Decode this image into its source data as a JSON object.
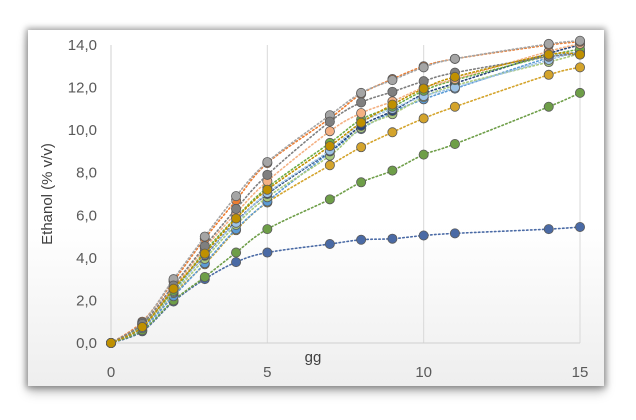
{
  "chart_data": {
    "type": "scatter",
    "xlabel": "gg",
    "ylabel": "Ethanol (% v/v)",
    "xlim": [
      0,
      15
    ],
    "ylim": [
      0,
      14
    ],
    "x_ticks": [
      0,
      5,
      10,
      15
    ],
    "x_tick_labels": [
      "0",
      "5",
      "10",
      "15"
    ],
    "y_ticks": [
      0,
      2,
      4,
      6,
      8,
      10,
      12,
      14
    ],
    "y_tick_labels": [
      "0,0",
      "2,0",
      "4,0",
      "6,0",
      "8,0",
      "10,0",
      "12,0",
      "14,0"
    ],
    "grid": "vertical",
    "line_style": "dotted",
    "x": [
      0,
      1,
      2,
      3,
      4,
      5,
      7,
      8,
      9,
      10,
      11,
      14,
      15
    ],
    "series": [
      {
        "color": "#4a6aa5",
        "values": [
          0.0,
          0.55,
          1.95,
          3.0,
          3.8,
          4.25,
          4.65,
          4.85,
          4.9,
          5.05,
          5.15,
          5.35,
          5.45
        ]
      },
      {
        "color": "#6e9e48",
        "values": [
          0.0,
          0.6,
          2.0,
          3.1,
          4.25,
          5.35,
          6.75,
          7.55,
          8.1,
          8.85,
          9.35,
          11.1,
          11.75
        ]
      },
      {
        "color": "#d4a42c",
        "values": [
          0.0,
          0.75,
          2.3,
          3.7,
          5.3,
          6.6,
          8.35,
          9.2,
          9.9,
          10.55,
          11.1,
          12.6,
          12.95
        ]
      },
      {
        "color": "#5b9bd5",
        "values": [
          0.0,
          0.7,
          2.2,
          3.75,
          5.35,
          6.65,
          8.95,
          10.05,
          10.85,
          11.45,
          11.95,
          13.4,
          13.65
        ]
      },
      {
        "color": "#a9c97e",
        "values": [
          0.0,
          0.8,
          2.35,
          3.95,
          5.55,
          6.85,
          8.8,
          10.1,
          10.75,
          11.55,
          12.1,
          13.2,
          13.6
        ]
      },
      {
        "color": "#264478",
        "values": [
          0.0,
          0.85,
          2.5,
          4.1,
          5.7,
          7.0,
          9.0,
          10.2,
          10.9,
          11.7,
          12.2,
          13.6,
          14.0
        ]
      },
      {
        "color": "#9dc3e6",
        "values": [
          0.0,
          0.8,
          2.4,
          4.15,
          5.65,
          7.05,
          9.05,
          10.35,
          11.0,
          11.6,
          12.0,
          13.3,
          13.7
        ]
      },
      {
        "color": "#70ad47",
        "values": [
          0.0,
          0.85,
          2.45,
          4.3,
          5.9,
          7.3,
          9.4,
          10.5,
          11.1,
          11.85,
          12.35,
          13.5,
          13.8
        ]
      },
      {
        "color": "#f4b183",
        "values": [
          0.0,
          0.9,
          2.6,
          4.45,
          6.1,
          7.6,
          9.95,
          10.8,
          11.35,
          12.0,
          12.4,
          13.7,
          14.05
        ]
      },
      {
        "color": "#ed7d31",
        "values": [
          0.0,
          1.0,
          2.9,
          4.9,
          6.7,
          8.45,
          10.55,
          11.7,
          12.4,
          13.0,
          13.35,
          14.0,
          14.15
        ]
      },
      {
        "color": "#a5a5a5",
        "values": [
          0.0,
          0.95,
          3.0,
          5.0,
          6.9,
          8.5,
          10.7,
          11.75,
          12.35,
          12.95,
          13.35,
          14.05,
          14.2
        ]
      },
      {
        "color": "#7f7f7f",
        "values": [
          0.0,
          0.9,
          2.7,
          4.55,
          6.3,
          7.9,
          10.4,
          11.3,
          11.8,
          12.3,
          12.7,
          13.45,
          13.55
        ]
      },
      {
        "color": "#bf9000",
        "values": [
          0.0,
          0.75,
          2.55,
          4.2,
          5.85,
          7.2,
          9.25,
          10.35,
          11.2,
          11.95,
          12.5,
          13.55,
          13.55
        ]
      }
    ]
  }
}
